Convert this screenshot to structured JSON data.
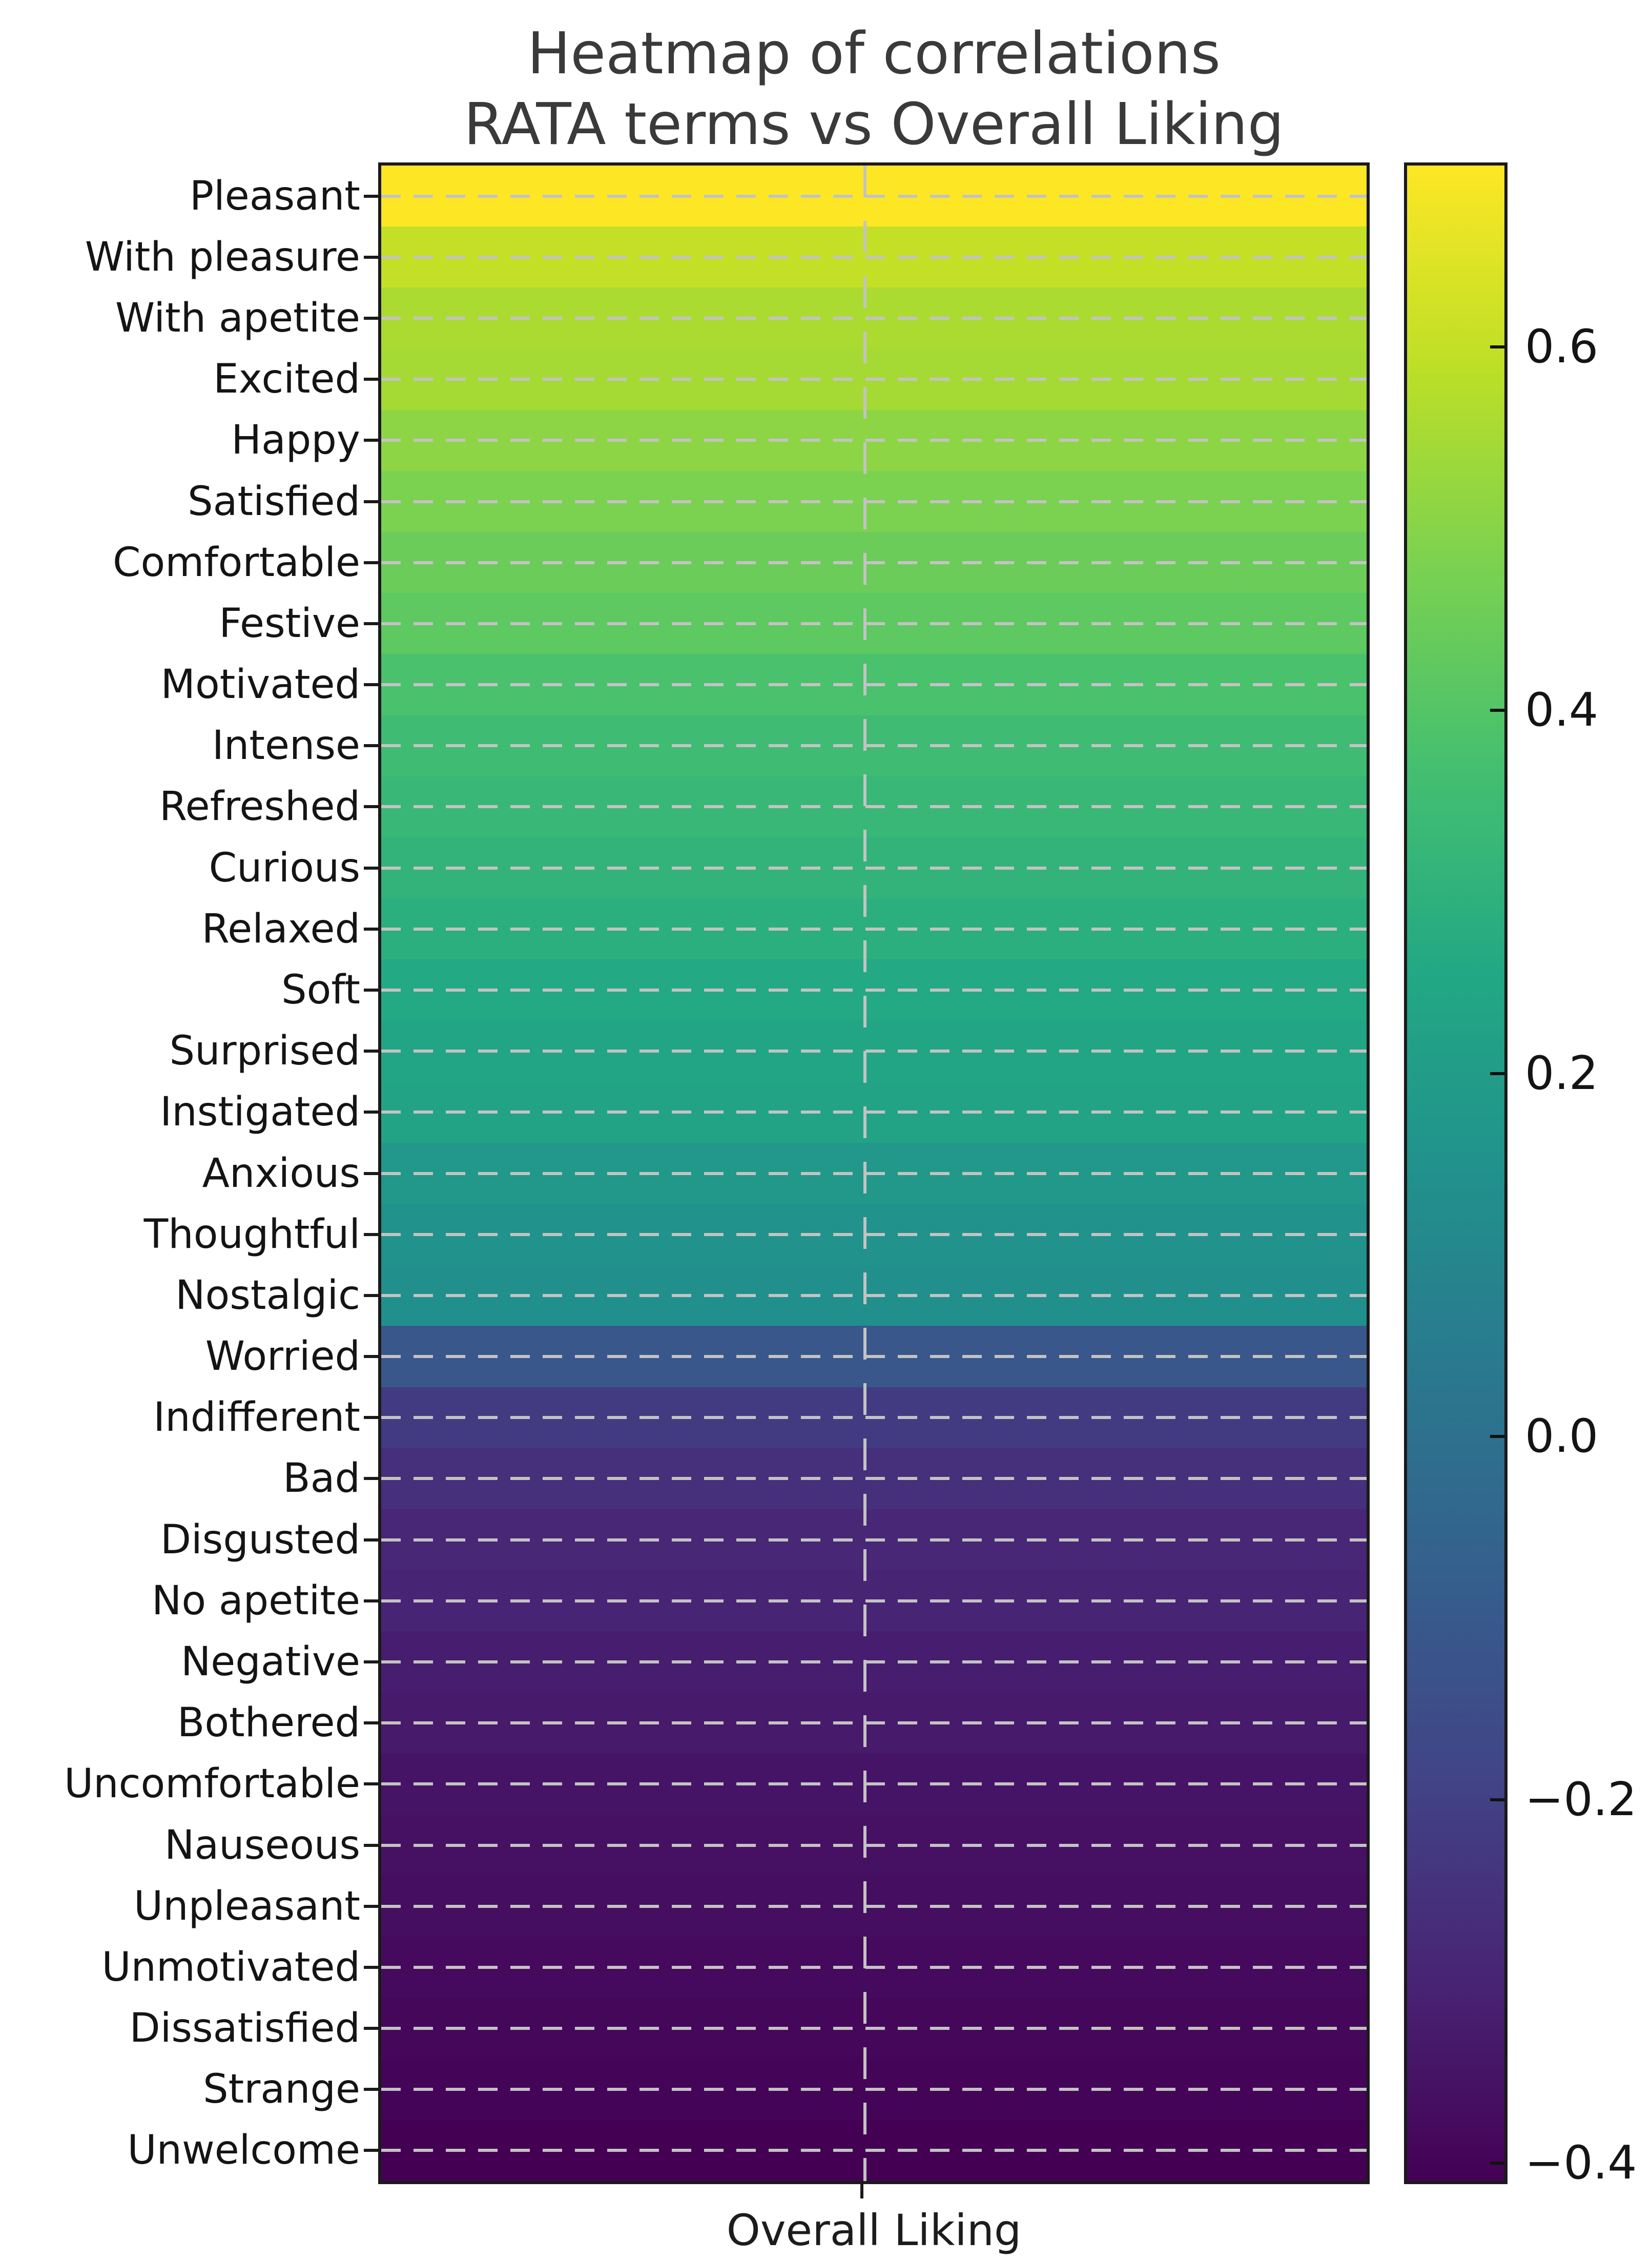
{
  "title": {
    "line1": "Heatmap of correlations",
    "line2": "RATA terms vs Overall Liking"
  },
  "xlabel": "Overall Liking",
  "chart_data": {
    "type": "heatmap",
    "title": "Heatmap of correlations\nRATA terms vs Overall Liking",
    "x_categories": [
      "Overall Liking"
    ],
    "y_axis_label": "",
    "x_axis_label": "Overall Liking",
    "colormap": "viridis",
    "vmin": -0.41,
    "vmax": 0.7,
    "grid": true,
    "gridline_style": "dashed",
    "colorbar_position": "right",
    "colorbar_ticks": [
      0.6,
      0.4,
      0.2,
      0.0,
      -0.2,
      -0.4
    ],
    "colorbar_tick_labels": [
      "0.6",
      "0.4",
      "0.2",
      "0.0",
      "−0.2",
      "−0.4"
    ],
    "rows": [
      {
        "label": "Pleasant",
        "value": 0.7
      },
      {
        "label": "With pleasure",
        "value": 0.6
      },
      {
        "label": "With apetite",
        "value": 0.56
      },
      {
        "label": "Excited",
        "value": 0.55
      },
      {
        "label": "Happy",
        "value": 0.51
      },
      {
        "label": "Satisfied",
        "value": 0.48
      },
      {
        "label": "Comfortable",
        "value": 0.45
      },
      {
        "label": "Festive",
        "value": 0.42
      },
      {
        "label": "Motivated",
        "value": 0.38
      },
      {
        "label": "Intense",
        "value": 0.35
      },
      {
        "label": "Refreshed",
        "value": 0.33
      },
      {
        "label": "Curious",
        "value": 0.31
      },
      {
        "label": "Relaxed",
        "value": 0.29
      },
      {
        "label": "Soft",
        "value": 0.26
      },
      {
        "label": "Surprised",
        "value": 0.24
      },
      {
        "label": "Instigated",
        "value": 0.23
      },
      {
        "label": "Anxious",
        "value": 0.18
      },
      {
        "label": "Thoughtful",
        "value": 0.15
      },
      {
        "label": "Nostalgic",
        "value": 0.14
      },
      {
        "label": "Worried",
        "value": -0.11
      },
      {
        "label": "Indifferent",
        "value": -0.22
      },
      {
        "label": "Bad",
        "value": -0.26
      },
      {
        "label": "Disgusted",
        "value": -0.29
      },
      {
        "label": "No apetite",
        "value": -0.3
      },
      {
        "label": "Negative",
        "value": -0.32
      },
      {
        "label": "Bothered",
        "value": -0.33
      },
      {
        "label": "Uncomfortable",
        "value": -0.35
      },
      {
        "label": "Nauseous",
        "value": -0.36
      },
      {
        "label": "Unpleasant",
        "value": -0.37
      },
      {
        "label": "Unmotivated",
        "value": -0.38
      },
      {
        "label": "Dissatisfied",
        "value": -0.39
      },
      {
        "label": "Strange",
        "value": -0.4
      },
      {
        "label": "Unwelcome",
        "value": -0.41
      }
    ],
    "viridis_stops": [
      [
        0.0,
        "#440154"
      ],
      [
        0.1,
        "#482475"
      ],
      [
        0.2,
        "#414487"
      ],
      [
        0.3,
        "#355f8d"
      ],
      [
        0.4,
        "#2a788e"
      ],
      [
        0.5,
        "#21918c"
      ],
      [
        0.6,
        "#22a884"
      ],
      [
        0.7,
        "#44bf70"
      ],
      [
        0.8,
        "#7ad151"
      ],
      [
        0.9,
        "#bddf26"
      ],
      [
        1.0,
        "#fde725"
      ]
    ]
  },
  "colors": {
    "title_text": "#3a3a3a",
    "axis_text": "#141414",
    "spine": "#1a1a1a",
    "gridline": "#c3c3c3",
    "background": "#ffffff"
  }
}
